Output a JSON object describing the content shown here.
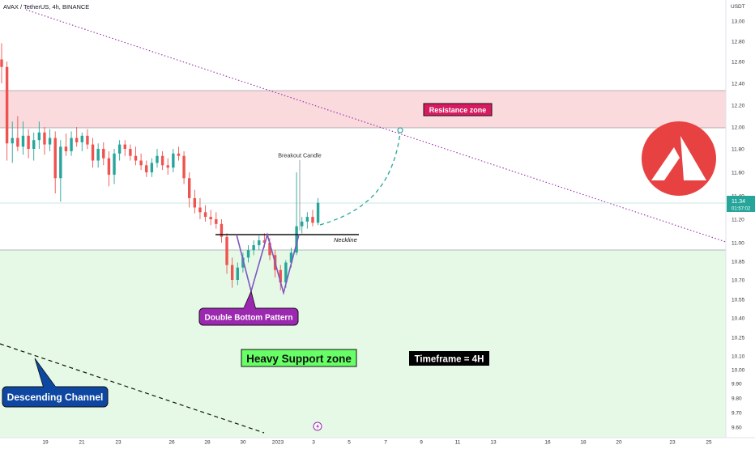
{
  "header": {
    "symbol_line": "AVAX / TetherUS, 4h, BINANCE",
    "quote_currency": "USDT"
  },
  "price_badge": {
    "price": "11.34",
    "countdown": "01:57:02",
    "color": "#26a69a"
  },
  "annotations": {
    "resistance": "Resistance zone",
    "support": "Heavy Support zone",
    "pattern": "Double Bottom Pattern",
    "channel": "Descending Channel",
    "breakout": "Breakout Candle",
    "neckline": "Neckline",
    "timeframe": "Timeframe = 4H"
  },
  "colors": {
    "bull": "#26a69a",
    "bear": "#ef5350",
    "resistance_fill": "#fadadd",
    "support_fill": "#e6f9e6",
    "trendline": "#9c27b0",
    "projection": "#26a69a",
    "pattern_line": "#7e57c2",
    "logo": "#e84142"
  },
  "icons": {
    "logo": "avalanche-logo-icon",
    "event": "lightning-icon"
  },
  "chart_data": {
    "type": "candlestick",
    "title": "AVAX / TetherUS, 4h, BINANCE",
    "y_axis": {
      "unit": "USDT",
      "ticks": [
        9.6,
        9.7,
        9.8,
        9.9,
        10.0,
        10.1,
        10.25,
        10.4,
        10.55,
        10.7,
        10.85,
        11.0,
        11.2,
        11.4,
        11.6,
        11.8,
        12.0,
        12.2,
        12.4,
        12.6,
        12.8,
        13.0
      ],
      "tick_labels": [
        "9.60",
        "9.70",
        "9.80",
        "9.90",
        "10.00",
        "10.10",
        "10.25",
        "10.40",
        "10.55",
        "10.70",
        "10.85",
        "11.00",
        "11.20",
        "11.40",
        "11.60",
        "11.80",
        "12.00",
        "12.20",
        "12.40",
        "12.60",
        "12.80",
        "13.00"
      ]
    },
    "x_axis": {
      "tick_labels": [
        "19",
        "21",
        "23",
        "26",
        "28",
        "30",
        "2023",
        "3",
        "5",
        "7",
        "9",
        "11",
        "13",
        "16",
        "18",
        "20",
        "23",
        "25"
      ]
    },
    "last_price": 11.34,
    "zones": [
      {
        "name": "Resistance zone",
        "from": 11.99,
        "to": 12.33
      },
      {
        "name": "Heavy Support zone",
        "from": 9.57,
        "to": 10.96
      }
    ],
    "levels": [
      {
        "name": "Neckline",
        "price": 11.08
      }
    ],
    "candles": [
      {
        "o": 12.62,
        "h": 12.78,
        "l": 12.4,
        "c": 12.55
      },
      {
        "o": 12.55,
        "h": 12.6,
        "l": 11.7,
        "c": 11.85
      },
      {
        "o": 11.85,
        "h": 12.05,
        "l": 11.68,
        "c": 11.9
      },
      {
        "o": 11.9,
        "h": 12.1,
        "l": 11.78,
        "c": 11.82
      },
      {
        "o": 11.82,
        "h": 12.05,
        "l": 11.75,
        "c": 11.92
      },
      {
        "o": 11.92,
        "h": 11.98,
        "l": 11.72,
        "c": 11.8
      },
      {
        "o": 11.8,
        "h": 11.95,
        "l": 11.7,
        "c": 11.88
      },
      {
        "o": 11.88,
        "h": 12.05,
        "l": 11.8,
        "c": 11.95
      },
      {
        "o": 11.95,
        "h": 12.0,
        "l": 11.75,
        "c": 11.84
      },
      {
        "o": 11.84,
        "h": 11.98,
        "l": 11.78,
        "c": 11.9
      },
      {
        "o": 11.9,
        "h": 11.96,
        "l": 11.42,
        "c": 11.55
      },
      {
        "o": 11.55,
        "h": 11.88,
        "l": 11.35,
        "c": 11.82
      },
      {
        "o": 11.82,
        "h": 11.94,
        "l": 11.74,
        "c": 11.78
      },
      {
        "o": 11.78,
        "h": 11.96,
        "l": 11.74,
        "c": 11.9
      },
      {
        "o": 11.9,
        "h": 12.0,
        "l": 11.82,
        "c": 11.86
      },
      {
        "o": 11.86,
        "h": 11.95,
        "l": 11.78,
        "c": 11.92
      },
      {
        "o": 11.92,
        "h": 11.98,
        "l": 11.8,
        "c": 11.84
      },
      {
        "o": 11.84,
        "h": 11.9,
        "l": 11.64,
        "c": 11.7
      },
      {
        "o": 11.7,
        "h": 11.85,
        "l": 11.64,
        "c": 11.8
      },
      {
        "o": 11.8,
        "h": 11.86,
        "l": 11.66,
        "c": 11.72
      },
      {
        "o": 11.72,
        "h": 11.78,
        "l": 11.48,
        "c": 11.58
      },
      {
        "o": 11.58,
        "h": 11.8,
        "l": 11.5,
        "c": 11.76
      },
      {
        "o": 11.76,
        "h": 11.88,
        "l": 11.7,
        "c": 11.84
      },
      {
        "o": 11.84,
        "h": 11.88,
        "l": 11.74,
        "c": 11.8
      },
      {
        "o": 11.8,
        "h": 11.84,
        "l": 11.7,
        "c": 11.74
      },
      {
        "o": 11.74,
        "h": 11.82,
        "l": 11.66,
        "c": 11.7
      },
      {
        "o": 11.7,
        "h": 11.76,
        "l": 11.62,
        "c": 11.66
      },
      {
        "o": 11.66,
        "h": 11.7,
        "l": 11.56,
        "c": 11.6
      },
      {
        "o": 11.6,
        "h": 11.72,
        "l": 11.56,
        "c": 11.68
      },
      {
        "o": 11.68,
        "h": 11.8,
        "l": 11.64,
        "c": 11.74
      },
      {
        "o": 11.74,
        "h": 11.78,
        "l": 11.62,
        "c": 11.66
      },
      {
        "o": 11.66,
        "h": 11.72,
        "l": 11.58,
        "c": 11.64
      },
      {
        "o": 11.64,
        "h": 11.8,
        "l": 11.6,
        "c": 11.76
      },
      {
        "o": 11.76,
        "h": 11.82,
        "l": 11.7,
        "c": 11.74
      },
      {
        "o": 11.74,
        "h": 11.78,
        "l": 11.5,
        "c": 11.55
      },
      {
        "o": 11.55,
        "h": 11.6,
        "l": 11.3,
        "c": 11.38
      },
      {
        "o": 11.38,
        "h": 11.45,
        "l": 11.25,
        "c": 11.3
      },
      {
        "o": 11.3,
        "h": 11.38,
        "l": 11.2,
        "c": 11.26
      },
      {
        "o": 11.26,
        "h": 11.32,
        "l": 11.18,
        "c": 11.22
      },
      {
        "o": 11.22,
        "h": 11.28,
        "l": 11.15,
        "c": 11.2
      },
      {
        "o": 11.2,
        "h": 11.26,
        "l": 11.12,
        "c": 11.16
      },
      {
        "o": 11.16,
        "h": 11.2,
        "l": 11.0,
        "c": 11.05
      },
      {
        "o": 11.05,
        "h": 11.08,
        "l": 10.75,
        "c": 10.82
      },
      {
        "o": 10.82,
        "h": 10.88,
        "l": 10.64,
        "c": 10.7
      },
      {
        "o": 10.7,
        "h": 10.84,
        "l": 10.66,
        "c": 10.8
      },
      {
        "o": 10.8,
        "h": 10.92,
        "l": 10.76,
        "c": 10.88
      },
      {
        "o": 10.88,
        "h": 10.98,
        "l": 10.84,
        "c": 10.94
      },
      {
        "o": 10.94,
        "h": 11.02,
        "l": 10.9,
        "c": 10.98
      },
      {
        "o": 10.98,
        "h": 11.06,
        "l": 10.94,
        "c": 11.02
      },
      {
        "o": 11.02,
        "h": 11.08,
        "l": 10.96,
        "c": 11.0
      },
      {
        "o": 11.0,
        "h": 11.04,
        "l": 10.86,
        "c": 10.9
      },
      {
        "o": 10.9,
        "h": 10.94,
        "l": 10.72,
        "c": 10.78
      },
      {
        "o": 10.78,
        "h": 10.82,
        "l": 10.62,
        "c": 10.68
      },
      {
        "o": 10.68,
        "h": 10.86,
        "l": 10.64,
        "c": 10.84
      },
      {
        "o": 10.84,
        "h": 10.96,
        "l": 10.8,
        "c": 10.92
      },
      {
        "o": 10.92,
        "h": 11.6,
        "l": 10.9,
        "c": 11.14
      },
      {
        "o": 11.14,
        "h": 11.22,
        "l": 11.08,
        "c": 11.18
      },
      {
        "o": 11.18,
        "h": 11.26,
        "l": 11.12,
        "c": 11.22
      },
      {
        "o": 11.22,
        "h": 11.28,
        "l": 11.14,
        "c": 11.17
      },
      {
        "o": 11.17,
        "h": 11.38,
        "l": 11.15,
        "c": 11.34
      }
    ]
  }
}
